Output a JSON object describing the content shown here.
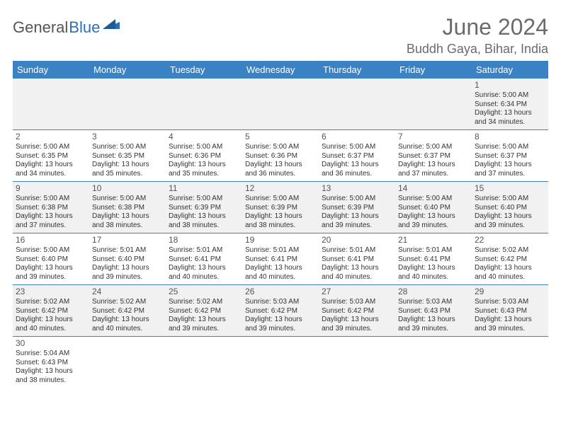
{
  "logo": {
    "part1": "General",
    "part2": "Blue"
  },
  "title": "June 2024",
  "location": "Buddh Gaya, Bihar, India",
  "colors": {
    "header_bg": "#3b82c4",
    "header_fg": "#ffffff",
    "row_alt_bg": "#f1f1f1",
    "row_bg": "#ffffff",
    "text": "#333333",
    "title_color": "#6b6b6b",
    "logo_gray": "#555555",
    "logo_blue": "#2d6fb5",
    "cell_border": "#3b82c4"
  },
  "day_headers": [
    "Sunday",
    "Monday",
    "Tuesday",
    "Wednesday",
    "Thursday",
    "Friday",
    "Saturday"
  ],
  "weeks": [
    [
      null,
      null,
      null,
      null,
      null,
      null,
      {
        "n": "1",
        "sr": "5:00 AM",
        "ss": "6:34 PM",
        "dl": "13 hours and 34 minutes."
      }
    ],
    [
      {
        "n": "2",
        "sr": "5:00 AM",
        "ss": "6:35 PM",
        "dl": "13 hours and 34 minutes."
      },
      {
        "n": "3",
        "sr": "5:00 AM",
        "ss": "6:35 PM",
        "dl": "13 hours and 35 minutes."
      },
      {
        "n": "4",
        "sr": "5:00 AM",
        "ss": "6:36 PM",
        "dl": "13 hours and 35 minutes."
      },
      {
        "n": "5",
        "sr": "5:00 AM",
        "ss": "6:36 PM",
        "dl": "13 hours and 36 minutes."
      },
      {
        "n": "6",
        "sr": "5:00 AM",
        "ss": "6:37 PM",
        "dl": "13 hours and 36 minutes."
      },
      {
        "n": "7",
        "sr": "5:00 AM",
        "ss": "6:37 PM",
        "dl": "13 hours and 37 minutes."
      },
      {
        "n": "8",
        "sr": "5:00 AM",
        "ss": "6:37 PM",
        "dl": "13 hours and 37 minutes."
      }
    ],
    [
      {
        "n": "9",
        "sr": "5:00 AM",
        "ss": "6:38 PM",
        "dl": "13 hours and 37 minutes."
      },
      {
        "n": "10",
        "sr": "5:00 AM",
        "ss": "6:38 PM",
        "dl": "13 hours and 38 minutes."
      },
      {
        "n": "11",
        "sr": "5:00 AM",
        "ss": "6:39 PM",
        "dl": "13 hours and 38 minutes."
      },
      {
        "n": "12",
        "sr": "5:00 AM",
        "ss": "6:39 PM",
        "dl": "13 hours and 38 minutes."
      },
      {
        "n": "13",
        "sr": "5:00 AM",
        "ss": "6:39 PM",
        "dl": "13 hours and 39 minutes."
      },
      {
        "n": "14",
        "sr": "5:00 AM",
        "ss": "6:40 PM",
        "dl": "13 hours and 39 minutes."
      },
      {
        "n": "15",
        "sr": "5:00 AM",
        "ss": "6:40 PM",
        "dl": "13 hours and 39 minutes."
      }
    ],
    [
      {
        "n": "16",
        "sr": "5:00 AM",
        "ss": "6:40 PM",
        "dl": "13 hours and 39 minutes."
      },
      {
        "n": "17",
        "sr": "5:01 AM",
        "ss": "6:40 PM",
        "dl": "13 hours and 39 minutes."
      },
      {
        "n": "18",
        "sr": "5:01 AM",
        "ss": "6:41 PM",
        "dl": "13 hours and 40 minutes."
      },
      {
        "n": "19",
        "sr": "5:01 AM",
        "ss": "6:41 PM",
        "dl": "13 hours and 40 minutes."
      },
      {
        "n": "20",
        "sr": "5:01 AM",
        "ss": "6:41 PM",
        "dl": "13 hours and 40 minutes."
      },
      {
        "n": "21",
        "sr": "5:01 AM",
        "ss": "6:41 PM",
        "dl": "13 hours and 40 minutes."
      },
      {
        "n": "22",
        "sr": "5:02 AM",
        "ss": "6:42 PM",
        "dl": "13 hours and 40 minutes."
      }
    ],
    [
      {
        "n": "23",
        "sr": "5:02 AM",
        "ss": "6:42 PM",
        "dl": "13 hours and 40 minutes."
      },
      {
        "n": "24",
        "sr": "5:02 AM",
        "ss": "6:42 PM",
        "dl": "13 hours and 40 minutes."
      },
      {
        "n": "25",
        "sr": "5:02 AM",
        "ss": "6:42 PM",
        "dl": "13 hours and 39 minutes."
      },
      {
        "n": "26",
        "sr": "5:03 AM",
        "ss": "6:42 PM",
        "dl": "13 hours and 39 minutes."
      },
      {
        "n": "27",
        "sr": "5:03 AM",
        "ss": "6:42 PM",
        "dl": "13 hours and 39 minutes."
      },
      {
        "n": "28",
        "sr": "5:03 AM",
        "ss": "6:43 PM",
        "dl": "13 hours and 39 minutes."
      },
      {
        "n": "29",
        "sr": "5:03 AM",
        "ss": "6:43 PM",
        "dl": "13 hours and 39 minutes."
      }
    ],
    [
      {
        "n": "30",
        "sr": "5:04 AM",
        "ss": "6:43 PM",
        "dl": "13 hours and 38 minutes."
      },
      null,
      null,
      null,
      null,
      null,
      null
    ]
  ],
  "labels": {
    "sunrise": "Sunrise:",
    "sunset": "Sunset:",
    "daylight": "Daylight:"
  }
}
